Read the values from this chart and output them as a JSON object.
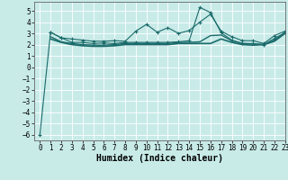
{
  "xlabel": "Humidex (Indice chaleur)",
  "background_color": "#c8ebe8",
  "grid_color": "#ffffff",
  "line_color": "#1a6b6b",
  "xlim": [
    -0.5,
    23
  ],
  "ylim": [
    -6.5,
    5.8
  ],
  "yticks": [
    -6,
    -5,
    -4,
    -3,
    -2,
    -1,
    0,
    1,
    2,
    3,
    4,
    5
  ],
  "xticks": [
    0,
    1,
    2,
    3,
    4,
    5,
    6,
    7,
    8,
    9,
    10,
    11,
    12,
    13,
    14,
    15,
    16,
    17,
    18,
    19,
    20,
    21,
    22,
    23
  ],
  "xtick_labels": [
    "0",
    "1",
    "2",
    "3",
    "4",
    "5",
    "6",
    "7",
    "8",
    "9",
    "10",
    "11",
    "12",
    "13",
    "14",
    "15",
    "16",
    "17",
    "18",
    "19",
    "20",
    "21",
    "22",
    "23"
  ],
  "lines": [
    {
      "x": [
        0,
        1,
        2,
        3,
        4,
        5,
        6,
        7,
        8,
        9,
        10,
        11,
        12,
        13,
        14,
        15,
        16,
        17,
        18,
        19,
        20,
        21,
        22,
        23
      ],
      "y": [
        -6.0,
        3.1,
        2.6,
        2.2,
        2.2,
        2.1,
        2.15,
        2.1,
        2.2,
        2.2,
        2.2,
        2.2,
        2.2,
        2.25,
        2.35,
        5.3,
        4.85,
        3.05,
        2.4,
        2.1,
        2.1,
        2.0,
        2.55,
        3.05
      ],
      "marker": "+",
      "linewidth": 0.8,
      "markersize": 3.5
    },
    {
      "x": [
        1,
        2,
        3,
        4,
        5,
        6,
        7,
        8,
        9,
        10,
        11,
        12,
        13,
        14,
        15,
        16,
        17,
        18,
        19,
        20,
        21,
        22,
        23
      ],
      "y": [
        2.5,
        2.2,
        2.0,
        1.9,
        1.85,
        1.85,
        1.9,
        2.0,
        2.0,
        2.0,
        2.0,
        2.0,
        2.1,
        2.1,
        2.1,
        2.1,
        2.5,
        2.2,
        2.0,
        1.95,
        2.0,
        2.3,
        3.0
      ],
      "marker": null,
      "linewidth": 1.2,
      "markersize": 0
    },
    {
      "x": [
        1,
        2,
        3,
        4,
        5,
        6,
        7,
        8,
        9,
        10,
        11,
        12,
        13,
        14,
        15,
        16,
        17,
        18,
        19,
        20,
        21,
        22,
        23
      ],
      "y": [
        3.1,
        2.6,
        2.5,
        2.4,
        2.3,
        2.3,
        2.35,
        2.3,
        3.2,
        3.8,
        3.1,
        3.5,
        3.0,
        3.25,
        4.0,
        4.7,
        3.2,
        2.7,
        2.35,
        2.35,
        2.1,
        2.8,
        3.2
      ],
      "marker": "+",
      "linewidth": 0.8,
      "markersize": 3.5
    },
    {
      "x": [
        1,
        2,
        3,
        4,
        5,
        6,
        7,
        8,
        9,
        10,
        11,
        12,
        13,
        14,
        15,
        16,
        17,
        18,
        19,
        20,
        21,
        22,
        23
      ],
      "y": [
        2.7,
        2.25,
        2.1,
        2.0,
        1.95,
        1.95,
        2.0,
        2.1,
        2.1,
        2.1,
        2.1,
        2.1,
        2.2,
        2.2,
        2.25,
        2.8,
        2.85,
        2.35,
        2.1,
        2.05,
        2.0,
        2.4,
        3.1
      ],
      "marker": null,
      "linewidth": 1.0,
      "markersize": 0
    }
  ],
  "xlabel_fontsize": 7,
  "tick_fontsize": 5.5
}
